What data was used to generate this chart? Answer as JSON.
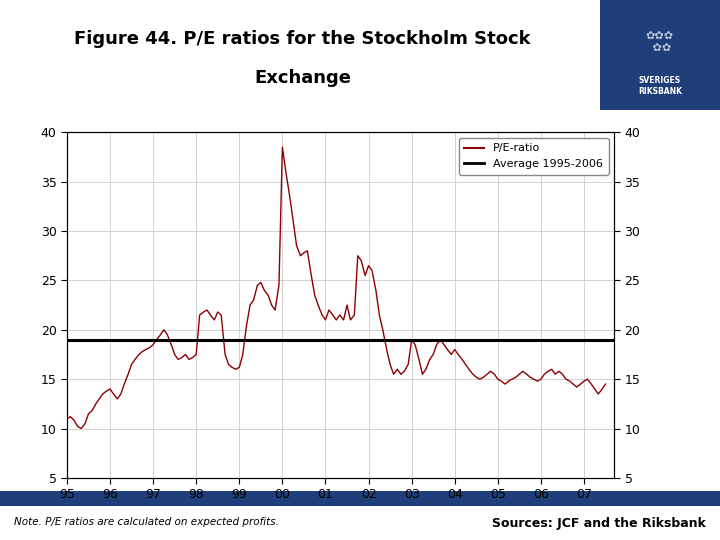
{
  "title_line1": "Figure 44. P/E ratios for the Stockholm Stock",
  "title_line2": "Exchange",
  "note": "Note. P/E ratios are calculated on expected profits.",
  "source": "Sources: JCF and the Riksbank",
  "average_value": 19.0,
  "average_label": "Average 1995-2006",
  "pe_label": "P/E-ratio",
  "ylim": [
    5,
    40
  ],
  "yticks": [
    5,
    10,
    15,
    20,
    25,
    30,
    35,
    40
  ],
  "line_color": "#8B0000",
  "average_color": "#000000",
  "background_color": "#ffffff",
  "logo_bg_color": "#1e3f7a",
  "footer_bar_color": "#1e3f7a",
  "x_data": [
    1995.0,
    1995.08,
    1995.17,
    1995.25,
    1995.33,
    1995.42,
    1995.5,
    1995.58,
    1995.67,
    1995.75,
    1995.83,
    1995.92,
    1996.0,
    1996.08,
    1996.17,
    1996.25,
    1996.33,
    1996.42,
    1996.5,
    1996.58,
    1996.67,
    1996.75,
    1996.83,
    1996.92,
    1997.0,
    1997.08,
    1997.17,
    1997.25,
    1997.33,
    1997.42,
    1997.5,
    1997.58,
    1997.67,
    1997.75,
    1997.83,
    1997.92,
    1998.0,
    1998.08,
    1998.17,
    1998.25,
    1998.33,
    1998.42,
    1998.5,
    1998.58,
    1998.67,
    1998.75,
    1998.83,
    1998.92,
    1999.0,
    1999.08,
    1999.17,
    1999.25,
    1999.33,
    1999.42,
    1999.5,
    1999.58,
    1999.67,
    1999.75,
    1999.83,
    1999.92,
    2000.0,
    2000.08,
    2000.17,
    2000.25,
    2000.33,
    2000.42,
    2000.5,
    2000.58,
    2000.67,
    2000.75,
    2000.83,
    2000.92,
    2001.0,
    2001.08,
    2001.17,
    2001.25,
    2001.33,
    2001.42,
    2001.5,
    2001.58,
    2001.67,
    2001.75,
    2001.83,
    2001.92,
    2002.0,
    2002.08,
    2002.17,
    2002.25,
    2002.33,
    2002.42,
    2002.5,
    2002.58,
    2002.67,
    2002.75,
    2002.83,
    2002.92,
    2003.0,
    2003.08,
    2003.17,
    2003.25,
    2003.33,
    2003.42,
    2003.5,
    2003.58,
    2003.67,
    2003.75,
    2003.83,
    2003.92,
    2004.0,
    2004.08,
    2004.17,
    2004.25,
    2004.33,
    2004.42,
    2004.5,
    2004.58,
    2004.67,
    2004.75,
    2004.83,
    2004.92,
    2005.0,
    2005.08,
    2005.17,
    2005.25,
    2005.33,
    2005.42,
    2005.5,
    2005.58,
    2005.67,
    2005.75,
    2005.83,
    2005.92,
    2006.0,
    2006.08,
    2006.17,
    2006.25,
    2006.33,
    2006.42,
    2006.5,
    2006.58,
    2006.67,
    2006.75,
    2006.83,
    2006.92,
    2007.0,
    2007.08,
    2007.17,
    2007.25,
    2007.33,
    2007.42,
    2007.5
  ],
  "y_data": [
    11.0,
    11.2,
    10.8,
    10.2,
    10.0,
    10.5,
    11.5,
    11.8,
    12.5,
    13.0,
    13.5,
    13.8,
    14.0,
    13.5,
    13.0,
    13.5,
    14.5,
    15.5,
    16.5,
    17.0,
    17.5,
    17.8,
    18.0,
    18.2,
    18.5,
    19.0,
    19.5,
    20.0,
    19.5,
    18.5,
    17.5,
    17.0,
    17.2,
    17.5,
    17.0,
    17.2,
    17.5,
    21.5,
    21.8,
    22.0,
    21.5,
    21.0,
    21.8,
    21.5,
    17.5,
    16.5,
    16.2,
    16.0,
    16.2,
    17.5,
    20.5,
    22.5,
    23.0,
    24.5,
    24.8,
    24.0,
    23.5,
    22.5,
    22.0,
    24.5,
    38.5,
    36.0,
    33.5,
    31.0,
    28.5,
    27.5,
    27.8,
    28.0,
    25.5,
    23.5,
    22.5,
    21.5,
    21.0,
    22.0,
    21.5,
    21.0,
    21.5,
    21.0,
    22.5,
    21.0,
    21.5,
    27.5,
    27.0,
    25.5,
    26.5,
    26.0,
    24.0,
    21.5,
    20.0,
    18.0,
    16.5,
    15.5,
    16.0,
    15.5,
    15.8,
    16.5,
    19.0,
    18.5,
    17.0,
    15.5,
    16.0,
    17.0,
    17.5,
    18.5,
    19.0,
    18.5,
    18.0,
    17.5,
    18.0,
    17.5,
    17.0,
    16.5,
    16.0,
    15.5,
    15.2,
    15.0,
    15.2,
    15.5,
    15.8,
    15.5,
    15.0,
    14.8,
    14.5,
    14.8,
    15.0,
    15.2,
    15.5,
    15.8,
    15.5,
    15.2,
    15.0,
    14.8,
    15.0,
    15.5,
    15.8,
    16.0,
    15.5,
    15.8,
    15.5,
    15.0,
    14.8,
    14.5,
    14.2,
    14.5,
    14.8,
    15.0,
    14.5,
    14.0,
    13.5,
    14.0,
    14.5
  ]
}
